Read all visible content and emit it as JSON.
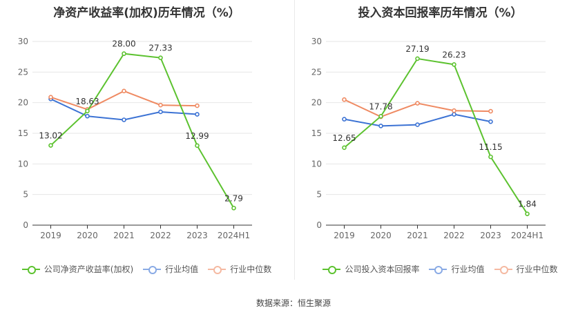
{
  "colors": {
    "company": "#5cc22f",
    "avg": "#3b72d4",
    "median": "#ef8a62",
    "grid": "#e6e6e6",
    "axis": "#666666"
  },
  "chart_data": [
    {
      "type": "line",
      "title": "净资产收益率(加权)历年情况（%）",
      "categories": [
        "2019",
        "2020",
        "2021",
        "2022",
        "2023",
        "2024H1"
      ],
      "ylim": [
        0,
        30
      ],
      "yticks": [
        0,
        5,
        10,
        15,
        20,
        25,
        30
      ],
      "grid": true,
      "legend_position": "bottom",
      "series": [
        {
          "name": "公司净资产收益率(加权)",
          "color": "#5cc22f",
          "labeled": true,
          "values": [
            13.02,
            18.63,
            28.0,
            27.33,
            12.99,
            2.79
          ],
          "labels": [
            "13.02",
            "18.63",
            "28.00",
            "27.33",
            "12.99",
            "2.79"
          ]
        },
        {
          "name": "行业均值",
          "color": "#3b72d4",
          "labeled": false,
          "values": [
            20.6,
            17.8,
            17.2,
            18.5,
            18.1,
            null
          ]
        },
        {
          "name": "行业中位数",
          "color": "#ef8a62",
          "labeled": false,
          "values": [
            20.9,
            18.9,
            21.9,
            19.6,
            19.5,
            null
          ]
        }
      ]
    },
    {
      "type": "line",
      "title": "投入资本回报率历年情况（%）",
      "categories": [
        "2019",
        "2020",
        "2021",
        "2022",
        "2023",
        "2024H1"
      ],
      "ylim": [
        0,
        30
      ],
      "yticks": [
        0,
        5,
        10,
        15,
        20,
        25,
        30
      ],
      "grid": true,
      "legend_position": "bottom",
      "series": [
        {
          "name": "公司投入资本回报率",
          "color": "#5cc22f",
          "labeled": true,
          "values": [
            12.65,
            17.78,
            27.19,
            26.23,
            11.15,
            1.84
          ],
          "labels": [
            "12.65",
            "17.78",
            "27.19",
            "26.23",
            "11.15",
            "1.84"
          ]
        },
        {
          "name": "行业均值",
          "color": "#3b72d4",
          "labeled": false,
          "values": [
            17.3,
            16.2,
            16.4,
            18.1,
            16.9,
            null
          ]
        },
        {
          "name": "行业中位数",
          "color": "#ef8a62",
          "labeled": false,
          "values": [
            20.5,
            17.7,
            19.9,
            18.7,
            18.6,
            null
          ]
        }
      ]
    }
  ],
  "footer": "数据来源：恒生聚源"
}
